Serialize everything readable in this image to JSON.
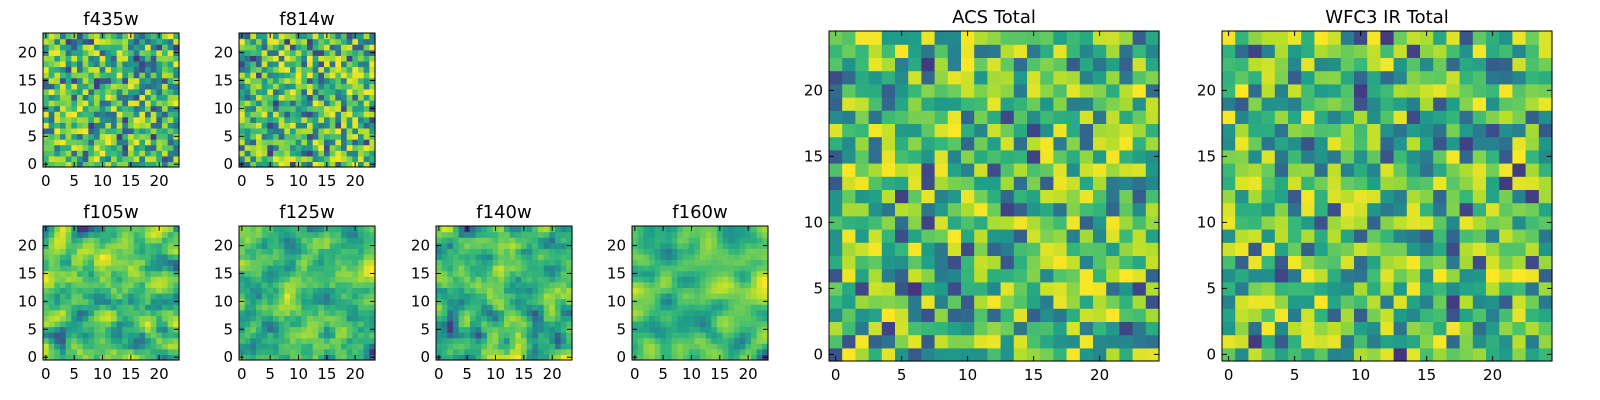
{
  "chart_data": [
    {
      "type": "heatmap",
      "title": "f435w",
      "rows": 24,
      "cols": 24,
      "x_ticks": [
        "0",
        "5",
        "10",
        "15",
        "20"
      ],
      "y_ticks": [
        "0",
        "5",
        "10",
        "15",
        "20"
      ],
      "xlim": [
        -0.5,
        23.5
      ],
      "ylim": [
        -0.5,
        23.5
      ],
      "colormap": "viridis",
      "seed": 11,
      "smooth": 0
    },
    {
      "type": "heatmap",
      "title": "f814w",
      "rows": 24,
      "cols": 24,
      "x_ticks": [
        "0",
        "5",
        "10",
        "15",
        "20"
      ],
      "y_ticks": [
        "0",
        "5",
        "10",
        "15",
        "20"
      ],
      "xlim": [
        -0.5,
        23.5
      ],
      "ylim": [
        -0.5,
        23.5
      ],
      "colormap": "viridis",
      "seed": 23,
      "smooth": 0
    },
    {
      "type": "heatmap",
      "title": "f105w",
      "rows": 24,
      "cols": 24,
      "x_ticks": [
        "0",
        "5",
        "10",
        "15",
        "20"
      ],
      "y_ticks": [
        "0",
        "5",
        "10",
        "15",
        "20"
      ],
      "xlim": [
        -0.5,
        23.5
      ],
      "ylim": [
        -0.5,
        23.5
      ],
      "colormap": "viridis",
      "seed": 37,
      "smooth": 1
    },
    {
      "type": "heatmap",
      "title": "f125w",
      "rows": 24,
      "cols": 24,
      "x_ticks": [
        "0",
        "5",
        "10",
        "15",
        "20"
      ],
      "y_ticks": [
        "0",
        "5",
        "10",
        "15",
        "20"
      ],
      "xlim": [
        -0.5,
        23.5
      ],
      "ylim": [
        -0.5,
        23.5
      ],
      "colormap": "viridis",
      "seed": 41,
      "smooth": 1
    },
    {
      "type": "heatmap",
      "title": "f140w",
      "rows": 24,
      "cols": 24,
      "x_ticks": [
        "0",
        "5",
        "10",
        "15",
        "20"
      ],
      "y_ticks": [
        "0",
        "5",
        "10",
        "15",
        "20"
      ],
      "xlim": [
        -0.5,
        23.5
      ],
      "ylim": [
        -0.5,
        23.5
      ],
      "colormap": "viridis",
      "seed": 53,
      "smooth": 1
    },
    {
      "type": "heatmap",
      "title": "f160w",
      "rows": 24,
      "cols": 24,
      "x_ticks": [
        "0",
        "5",
        "10",
        "15",
        "20"
      ],
      "y_ticks": [
        "0",
        "5",
        "10",
        "15",
        "20"
      ],
      "xlim": [
        -0.5,
        23.5
      ],
      "ylim": [
        -0.5,
        23.5
      ],
      "colormap": "viridis",
      "seed": 67,
      "smooth": 2
    },
    {
      "type": "heatmap",
      "title": "ACS Total",
      "rows": 25,
      "cols": 25,
      "x_ticks": [
        "0",
        "5",
        "10",
        "15",
        "20"
      ],
      "y_ticks": [
        "0",
        "5",
        "10",
        "15",
        "20"
      ],
      "xlim": [
        -0.5,
        24.5
      ],
      "ylim": [
        -0.5,
        24.5
      ],
      "colormap": "viridis",
      "seed": 79,
      "smooth": 0
    },
    {
      "type": "heatmap",
      "title": "WFC3 IR Total",
      "rows": 25,
      "cols": 25,
      "x_ticks": [
        "0",
        "5",
        "10",
        "15",
        "20"
      ],
      "y_ticks": [
        "0",
        "5",
        "10",
        "15",
        "20"
      ],
      "xlim": [
        -0.5,
        24.5
      ],
      "ylim": [
        -0.5,
        24.5
      ],
      "colormap": "viridis",
      "seed": 97,
      "smooth": 0
    }
  ]
}
